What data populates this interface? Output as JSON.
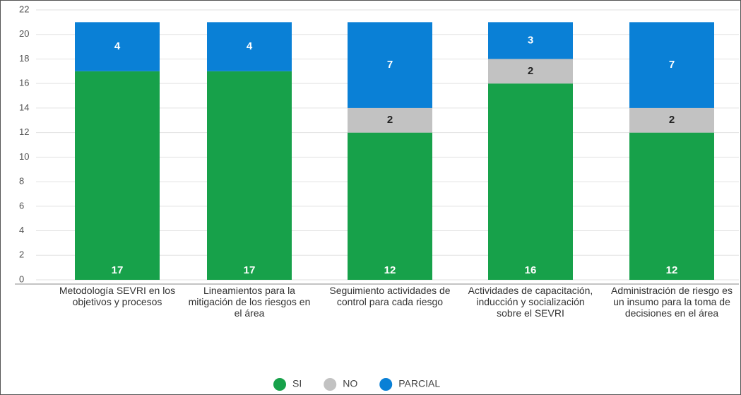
{
  "chart_data": {
    "type": "stacked_bar",
    "categories": [
      "Metodología SEVRI en los objetivos y procesos",
      "Lineamientos para la mitigación de los riesgos en el área",
      "Seguimiento actividades de control para cada riesgo",
      "Actividades de capacitación, inducción y socialización sobre el SEVRI",
      "Administración de riesgo es un insumo para la toma de decisiones en el área"
    ],
    "series": [
      {
        "name": "SI",
        "color": "#17a14a",
        "values": [
          17,
          17,
          12,
          16,
          12
        ]
      },
      {
        "name": "NO",
        "color": "#c2c2c2",
        "values": [
          0,
          0,
          2,
          2,
          2
        ]
      },
      {
        "name": "PARCIAL",
        "color": "#0a80d6",
        "values": [
          4,
          4,
          7,
          3,
          7
        ]
      }
    ],
    "ylim": [
      0,
      22
    ],
    "yticks": [
      0,
      2,
      4,
      6,
      8,
      10,
      12,
      14,
      16,
      18,
      20,
      22
    ],
    "grid": true,
    "legend": "bottom"
  }
}
